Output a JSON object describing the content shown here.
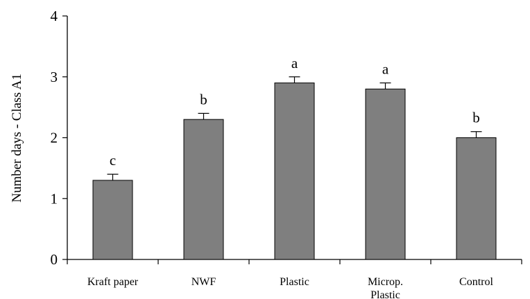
{
  "chart_data": {
    "type": "bar",
    "title": "",
    "xlabel": "",
    "ylabel": "Number days - Class A1",
    "ylim": [
      0,
      4
    ],
    "yticks": [
      "0",
      "1",
      "2",
      "3",
      "4"
    ],
    "categories": [
      [
        "Kraft paper"
      ],
      [
        "NWF"
      ],
      [
        "Plastic"
      ],
      [
        "Microp.",
        "Plastic"
      ],
      [
        "Control"
      ]
    ],
    "values": [
      1.3,
      2.3,
      2.9,
      2.8,
      2.0
    ],
    "errors": [
      0.1,
      0.1,
      0.1,
      0.1,
      0.1
    ],
    "significance": [
      "c",
      "b",
      "a",
      "a",
      "b"
    ],
    "grid": false,
    "legend": "none",
    "colors": {
      "bar": "#7f7f7f",
      "axis": "#000000"
    }
  }
}
